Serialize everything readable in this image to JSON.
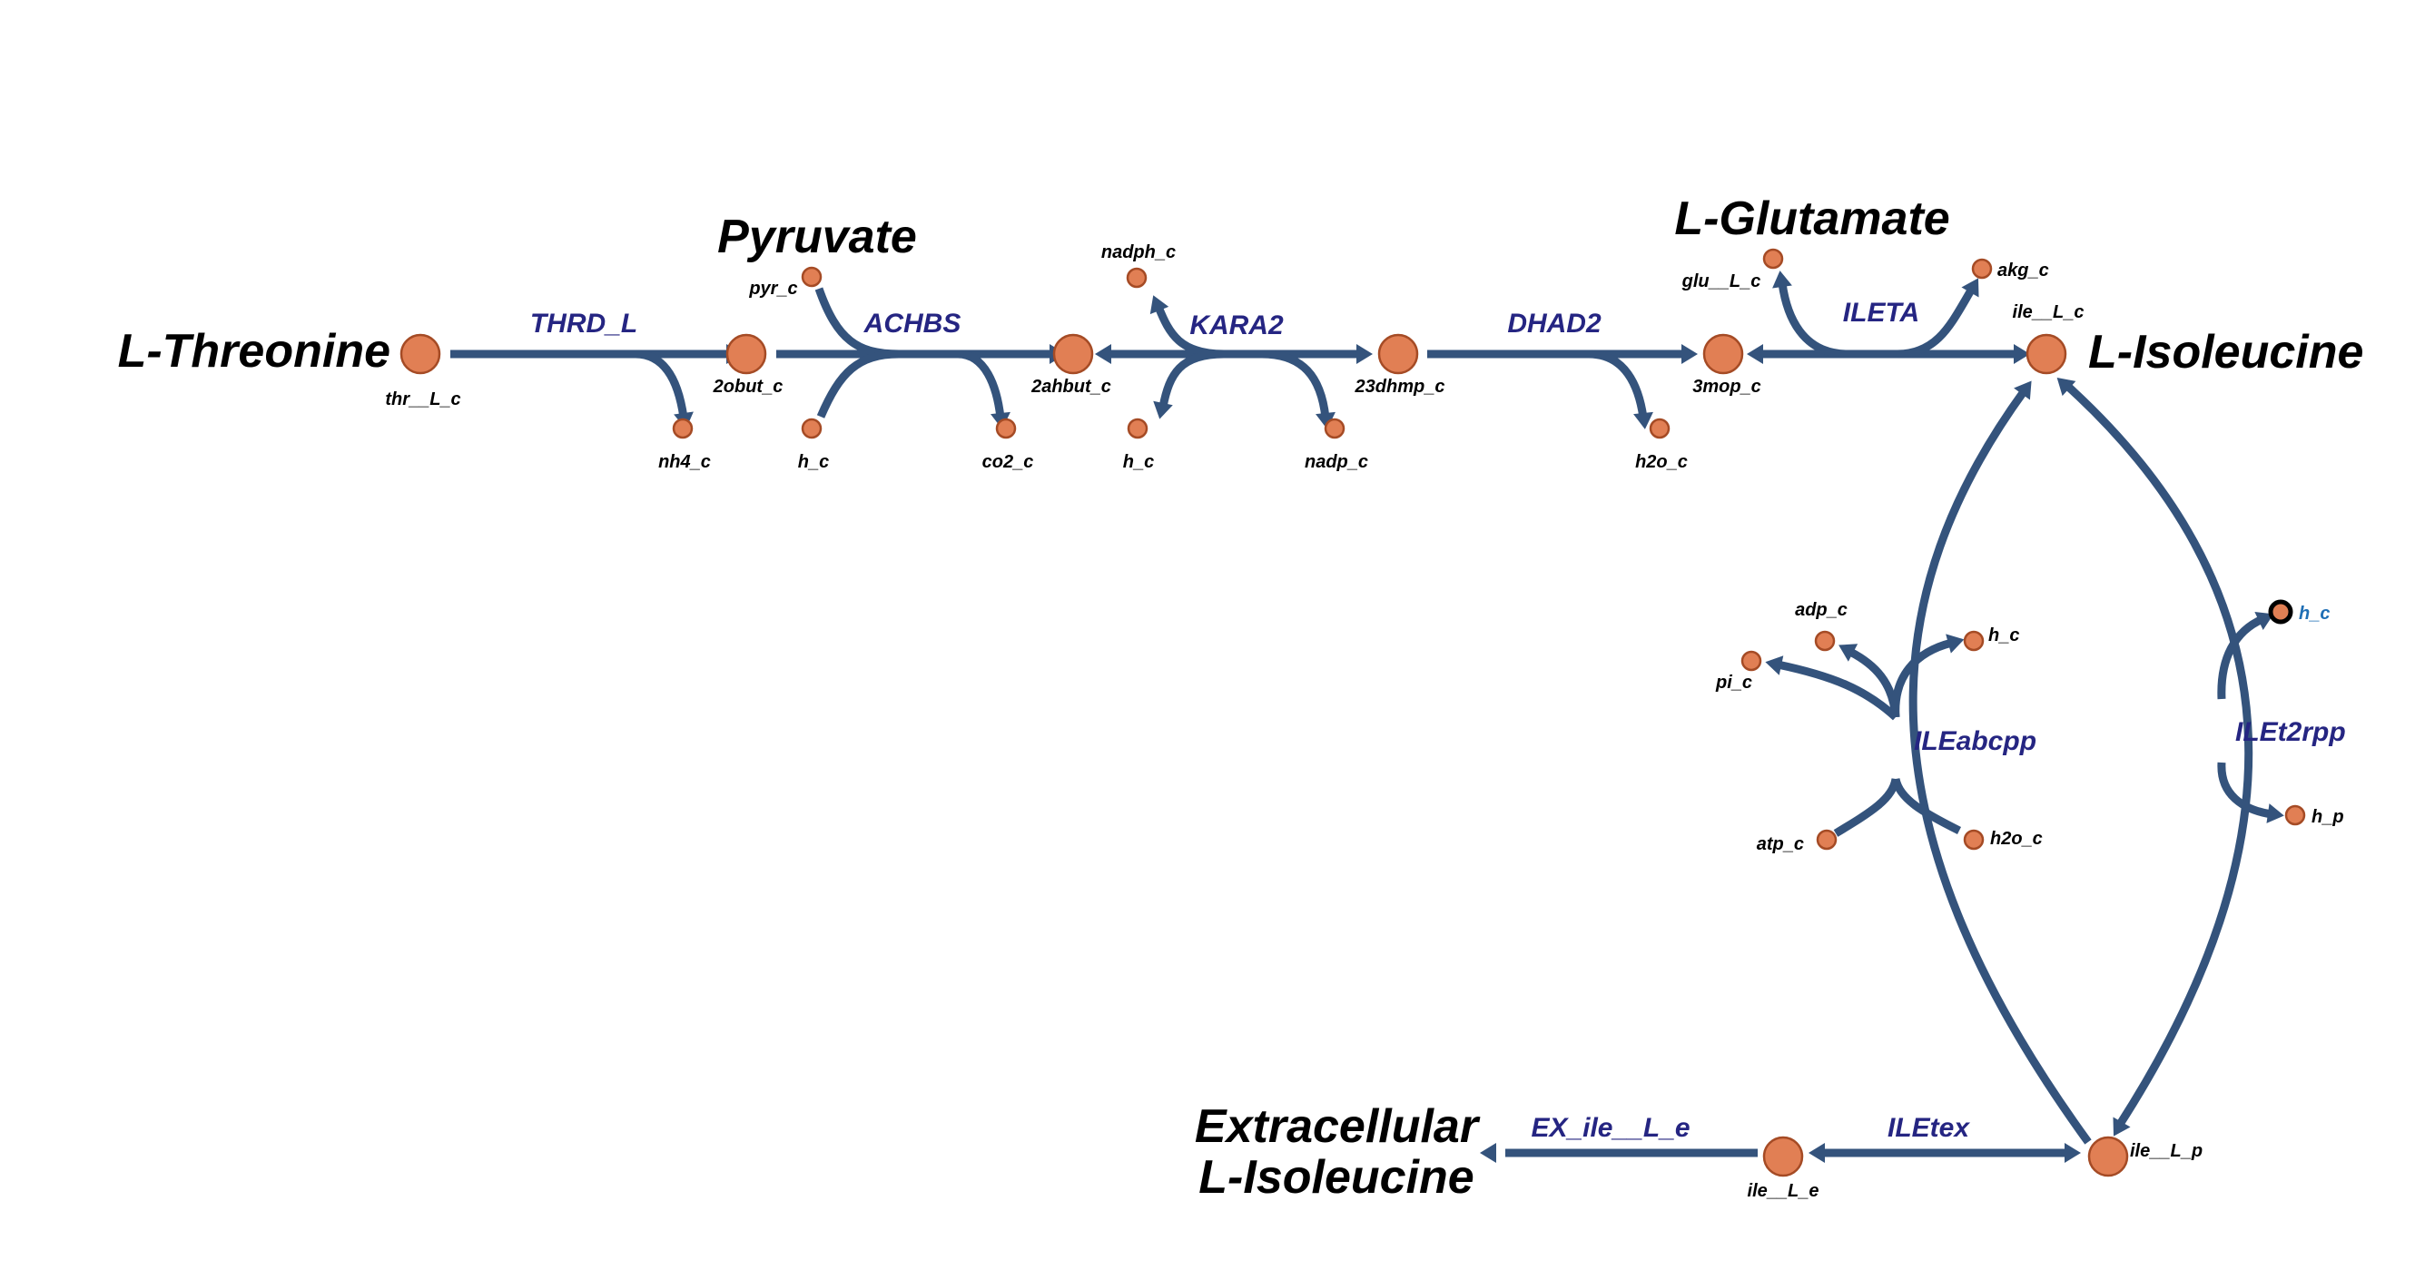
{
  "titles": {
    "threonine": "L-Threonine",
    "pyruvate": "Pyruvate",
    "glutamate": "L-Glutamate",
    "isoleucine": "L-Isoleucine",
    "extracellular_line1": "Extracellular",
    "extracellular_line2": "L-Isoleucine"
  },
  "reactions": {
    "thrd_l": "THRD_L",
    "achbs": "ACHBS",
    "kara2": "KARA2",
    "dhad2": "DHAD2",
    "ileta": "ILETA",
    "ileabcpp": "ILEabcpp",
    "ilet2rpp": "ILEt2rpp",
    "iletex": "ILEtex",
    "ex_ile": "EX_ile__L_e"
  },
  "metabolites": {
    "thr_L_c": "thr__L_c",
    "obut_c": "2obut_c",
    "nh4_c": "nh4_c",
    "pyr_c": "pyr_c",
    "h_c_achbs": "h_c",
    "ahbut_c": "2ahbut_c",
    "co2_c": "co2_c",
    "nadph_c": "nadph_c",
    "h_c_kara2": "h_c",
    "dhmp_c": "23dhmp_c",
    "nadp_c": "nadp_c",
    "mop_c": "3mop_c",
    "h2o_c_dhad2": "h2o_c",
    "glu_L_c": "glu__L_c",
    "akg_c": "akg_c",
    "ile_L_c": "ile__L_c",
    "adp_c": "adp_c",
    "h_c_abc": "h_c",
    "pi_c": "pi_c",
    "atp_c": "atp_c",
    "h2o_c_abc": "h2o_c",
    "h_c_selected": "h_c",
    "h_p": "h_p",
    "ile_L_p": "ile__L_p",
    "ile_L_e": "ile__L_e"
  },
  "colors": {
    "edge": "#34537c",
    "node_fill": "#e17f54",
    "node_stroke": "#a54b25",
    "reaction_label": "#252582",
    "selected_label": "#1f6fb5"
  }
}
